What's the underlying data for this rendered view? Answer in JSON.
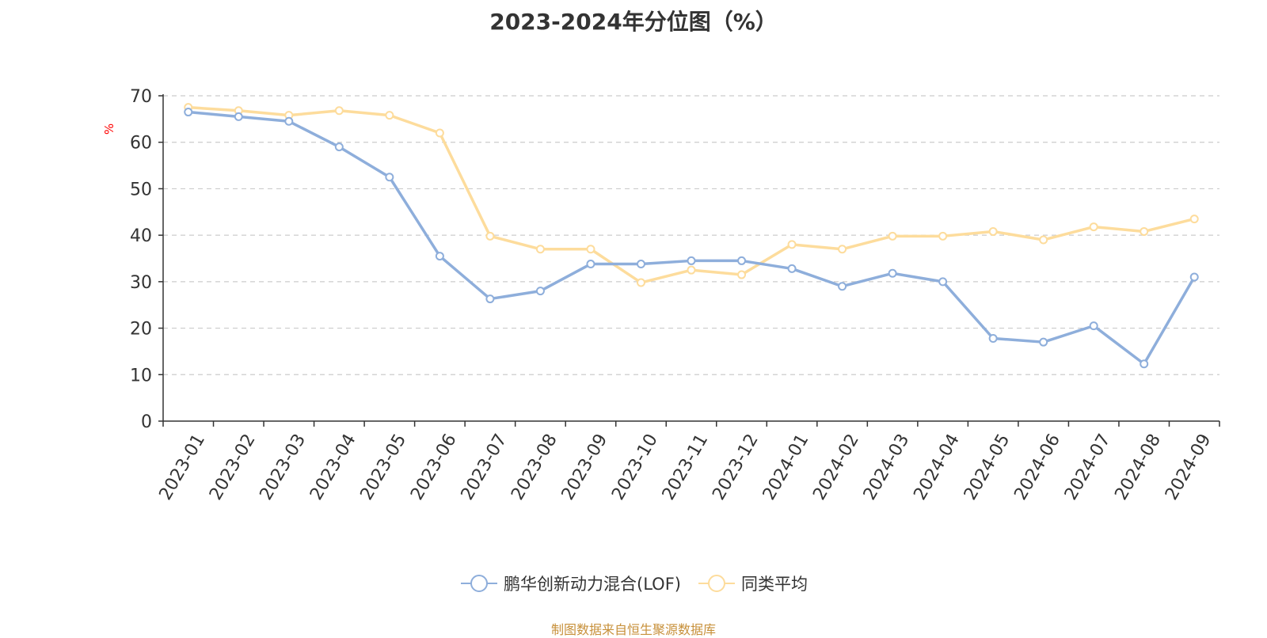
{
  "chart_data": {
    "type": "line",
    "title": "2023-2024年分位图（%）",
    "ylabel": "%",
    "xlabel": "",
    "ylim": [
      0,
      70
    ],
    "yticks": [
      0,
      10,
      20,
      30,
      40,
      50,
      60,
      70
    ],
    "grid": true,
    "legend_position": "bottom",
    "categories": [
      "2023-01",
      "2023-02",
      "2023-03",
      "2023-04",
      "2023-05",
      "2023-06",
      "2023-07",
      "2023-08",
      "2023-09",
      "2023-10",
      "2023-11",
      "2023-12",
      "2024-01",
      "2024-02",
      "2024-03",
      "2024-04",
      "2024-05",
      "2024-06",
      "2024-07",
      "2024-08",
      "2024-09"
    ],
    "series": [
      {
        "name": "鹏华创新动力混合(LOF)",
        "color": "#8eaedb",
        "values": [
          66.5,
          65.5,
          64.5,
          59.0,
          52.5,
          35.5,
          26.3,
          28.0,
          33.8,
          33.8,
          34.5,
          34.5,
          32.8,
          29.0,
          31.8,
          30.0,
          17.8,
          17.0,
          20.5,
          12.3,
          31.0
        ]
      },
      {
        "name": "同类平均",
        "color": "#fddc9c",
        "values": [
          67.5,
          66.8,
          65.8,
          66.8,
          65.8,
          62.0,
          39.8,
          37.0,
          37.0,
          29.8,
          32.5,
          31.5,
          38.0,
          37.0,
          39.8,
          39.8,
          40.8,
          39.0,
          41.8,
          40.8,
          43.5
        ]
      }
    ]
  },
  "source": "制图数据来自恒生聚源数据库"
}
